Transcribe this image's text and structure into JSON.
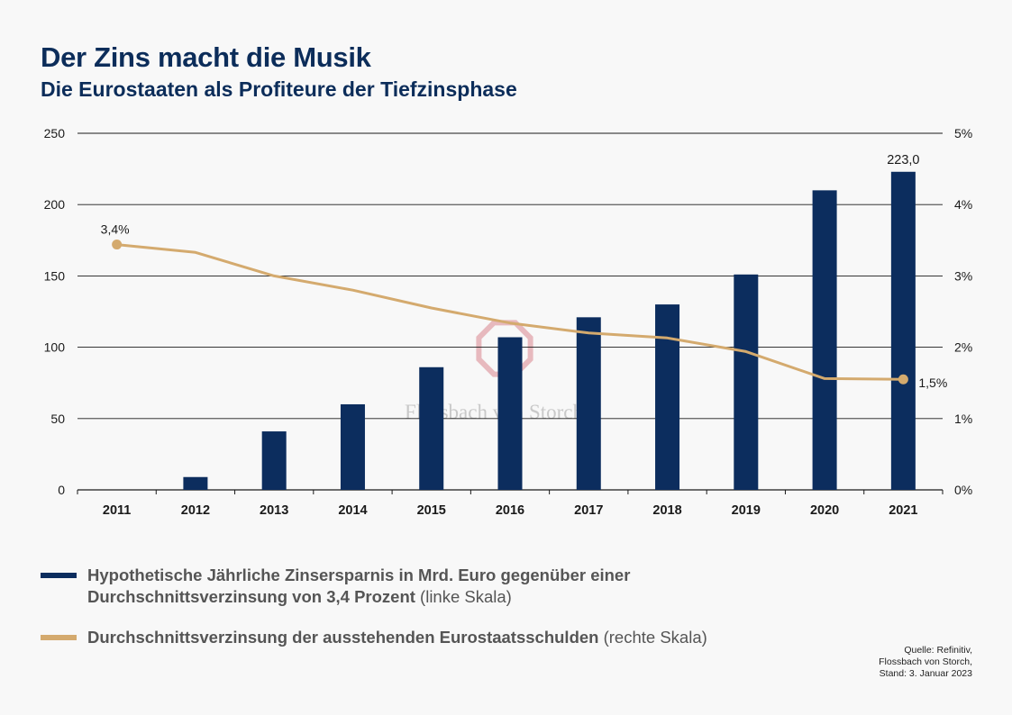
{
  "header": {
    "title": "Der Zins macht die Musik",
    "subtitle": "Die Eurostaaten als Profiteure der Tiefzinsphase"
  },
  "chart_data": {
    "type": "bar",
    "categories": [
      "2011",
      "2012",
      "2013",
      "2014",
      "2015",
      "2016",
      "2017",
      "2018",
      "2019",
      "2020",
      "2021"
    ],
    "series": [
      {
        "name": "Hypothetische Jährliche Zinsersparnis in Mrd. Euro gegenüber einer Durchschnittsverzinsung von 3,4 Prozent",
        "kind": "bar",
        "axis": "left",
        "color": "#0c2d5e",
        "values": [
          0,
          9,
          41,
          60,
          86,
          107,
          121,
          130,
          151,
          210,
          223
        ]
      },
      {
        "name": "Durchschnittsverzinsung der ausstehenden Eurostaatsschulden",
        "kind": "line",
        "axis": "right",
        "color": "#d4aa6e",
        "values": [
          3.44,
          3.33,
          3.0,
          2.8,
          2.55,
          2.34,
          2.2,
          2.13,
          1.94,
          1.56,
          1.55
        ]
      }
    ],
    "left_axis": {
      "min": 0,
      "max": 250,
      "ticks": [
        "0",
        "50",
        "100",
        "150",
        "200",
        "250"
      ]
    },
    "right_axis": {
      "min": 0,
      "max": 5,
      "ticks": [
        "0%",
        "1%",
        "2%",
        "3%",
        "4%",
        "5%"
      ]
    },
    "annotations": [
      {
        "series": 1,
        "index": 0,
        "label": "3,4%"
      },
      {
        "series": 1,
        "index": 10,
        "label": "1,5%"
      },
      {
        "series": 0,
        "index": 10,
        "label": "223,0"
      }
    ],
    "grid": true,
    "watermark": "Flossbach von Storch"
  },
  "legend": {
    "bar_label_bold_1": "Hypothetische Jährliche Zinsersparnis in Mrd. Euro gegenüber einer",
    "bar_label_bold_2": "Durchschnittsverzinsung von 3,4 Prozent",
    "bar_label_light": "(linke Skala)",
    "line_label_bold": "Durchschnittsverzinsung der ausstehenden Eurostaatsschulden",
    "line_label_light": "(rechte Skala)"
  },
  "source": {
    "line1": "Quelle: Refinitiv,",
    "line2": "Flossbach von Storch,",
    "line3": "Stand: 3. Januar 2023"
  }
}
